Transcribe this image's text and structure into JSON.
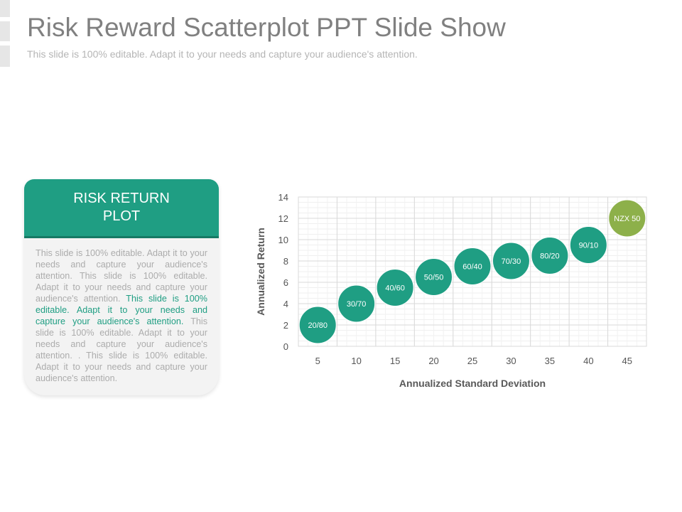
{
  "slide": {
    "title": "Risk Reward Scatterplot PPT Slide Show",
    "subtitle": "This slide is 100% editable. Adapt it to your needs and capture your audience's attention."
  },
  "card": {
    "title": "RISK RETURN PLOT",
    "body_1": "This slide is 100% editable. Adapt it to your needs and capture your audience's attention. This slide is 100% editable. Adapt it to your needs and capture your audience's attention. ",
    "body_highlight": "This slide is 100% editable. Adapt it to your needs and capture your audience's attention.",
    "body_2": " This slide is 100% editable. Adapt it to your needs and capture your audience's attention. . This slide is 100% editable. Adapt it to your needs and capture your audience's attention."
  },
  "colors": {
    "accent": "#1f9e83",
    "accent_dark": "#167a65",
    "highlight_point": "#8db04a",
    "grid": "#d9d9d9",
    "text_muted": "#acacac"
  },
  "chart_data": {
    "type": "scatter",
    "title": "",
    "xlabel": "Annualized Standard Deviation",
    "ylabel": "Annualized Return",
    "xlim": [
      2.5,
      47.5
    ],
    "ylim": [
      0,
      14
    ],
    "x_ticks": [
      5,
      10,
      15,
      20,
      25,
      30,
      35,
      40,
      45
    ],
    "y_ticks": [
      0,
      2,
      4,
      6,
      8,
      10,
      12,
      14
    ],
    "grid": true,
    "legend": "none",
    "points": [
      {
        "label": "20/80",
        "x": 5,
        "y": 2.0,
        "highlight": false
      },
      {
        "label": "30/70",
        "x": 10,
        "y": 4.0,
        "highlight": false
      },
      {
        "label": "40/60",
        "x": 15,
        "y": 5.5,
        "highlight": false
      },
      {
        "label": "50/50",
        "x": 20,
        "y": 6.5,
        "highlight": false
      },
      {
        "label": "60/40",
        "x": 25,
        "y": 7.5,
        "highlight": false
      },
      {
        "label": "70/30",
        "x": 30,
        "y": 8.0,
        "highlight": false
      },
      {
        "label": "80/20",
        "x": 35,
        "y": 8.5,
        "highlight": false
      },
      {
        "label": "90/10",
        "x": 40,
        "y": 9.5,
        "highlight": false
      },
      {
        "label": "NZX 50",
        "x": 45,
        "y": 12.0,
        "highlight": true
      }
    ]
  }
}
